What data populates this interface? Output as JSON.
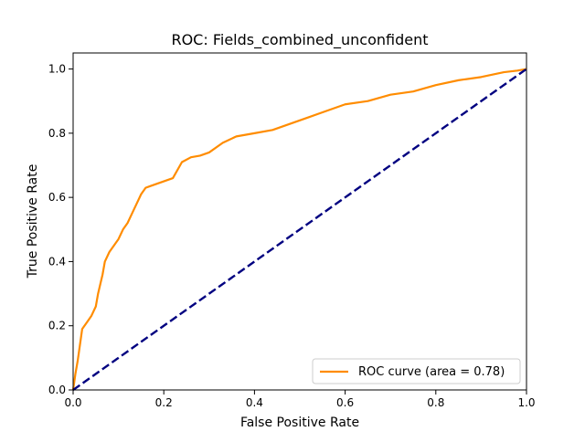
{
  "chart_data": {
    "type": "line",
    "title": "ROC: Fields_combined_unconfident",
    "xlabel": "False Positive Rate",
    "ylabel": "True Positive Rate",
    "xlim": [
      0.0,
      1.0
    ],
    "ylim": [
      0.0,
      1.05
    ],
    "x_ticks": [
      0.0,
      0.2,
      0.4,
      0.6,
      0.8,
      1.0
    ],
    "y_ticks": [
      0.0,
      0.2,
      0.4,
      0.6,
      0.8,
      1.0
    ],
    "x_tick_labels": [
      "0.0",
      "0.2",
      "0.4",
      "0.6",
      "0.8",
      "1.0"
    ],
    "y_tick_labels": [
      "0.0",
      "0.2",
      "0.4",
      "0.6",
      "0.8",
      "1.0"
    ],
    "grid": false,
    "legend_position": "lower-right",
    "series": [
      {
        "name": "ROC curve (area = 0.78)",
        "color": "#ff8c00",
        "style": "solid",
        "x": [
          0.0,
          0.005,
          0.01,
          0.015,
          0.02,
          0.03,
          0.04,
          0.05,
          0.055,
          0.06,
          0.065,
          0.07,
          0.08,
          0.09,
          0.1,
          0.11,
          0.12,
          0.13,
          0.14,
          0.15,
          0.16,
          0.17,
          0.18,
          0.2,
          0.22,
          0.24,
          0.26,
          0.28,
          0.3,
          0.33,
          0.36,
          0.4,
          0.44,
          0.48,
          0.52,
          0.56,
          0.6,
          0.65,
          0.7,
          0.75,
          0.8,
          0.85,
          0.9,
          0.95,
          0.98,
          1.0
        ],
        "y": [
          0.0,
          0.05,
          0.09,
          0.14,
          0.19,
          0.21,
          0.23,
          0.26,
          0.3,
          0.33,
          0.36,
          0.4,
          0.43,
          0.45,
          0.47,
          0.5,
          0.52,
          0.55,
          0.58,
          0.61,
          0.63,
          0.635,
          0.64,
          0.65,
          0.66,
          0.71,
          0.725,
          0.73,
          0.74,
          0.77,
          0.79,
          0.8,
          0.81,
          0.83,
          0.85,
          0.87,
          0.89,
          0.9,
          0.92,
          0.93,
          0.95,
          0.965,
          0.975,
          0.99,
          0.995,
          1.0
        ]
      },
      {
        "name": "",
        "color": "#000080",
        "style": "dashed",
        "x": [
          0.0,
          1.0
        ],
        "y": [
          0.0,
          1.0
        ]
      }
    ]
  }
}
